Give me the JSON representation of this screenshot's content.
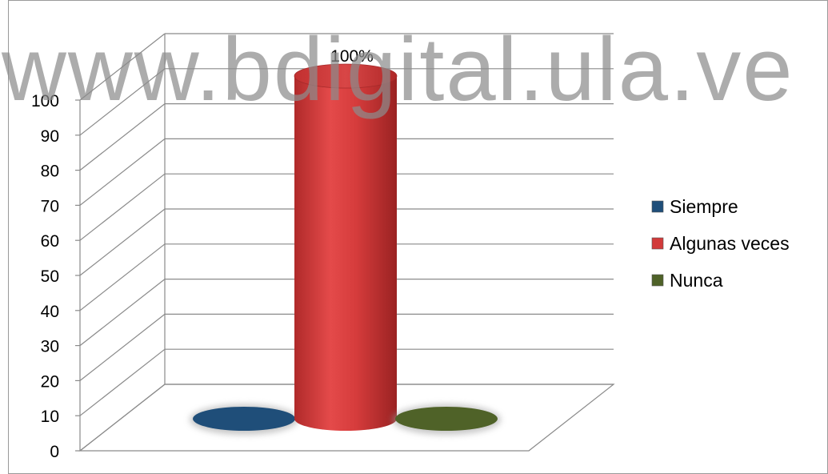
{
  "watermark": "www.bdigital.ula.ve",
  "chart_data": {
    "type": "bar",
    "style": "3d-cylinder",
    "categories": [
      "Siempre",
      "Algunas veces",
      "Nunca"
    ],
    "values": [
      0,
      100,
      0
    ],
    "data_labels": [
      "",
      "100%",
      ""
    ],
    "colors": [
      "#1f4e79",
      "#d23a3a",
      "#4f6228"
    ],
    "ylim": [
      0,
      100
    ],
    "yticks": [
      0,
      10,
      20,
      30,
      40,
      50,
      60,
      70,
      80,
      90,
      100
    ],
    "grid": true,
    "legend": {
      "position": "right",
      "entries": [
        {
          "label": "Siempre",
          "color": "#1f4e79"
        },
        {
          "label": "Algunas veces",
          "color": "#d23a3a"
        },
        {
          "label": "Nunca",
          "color": "#4f6228"
        }
      ]
    }
  }
}
